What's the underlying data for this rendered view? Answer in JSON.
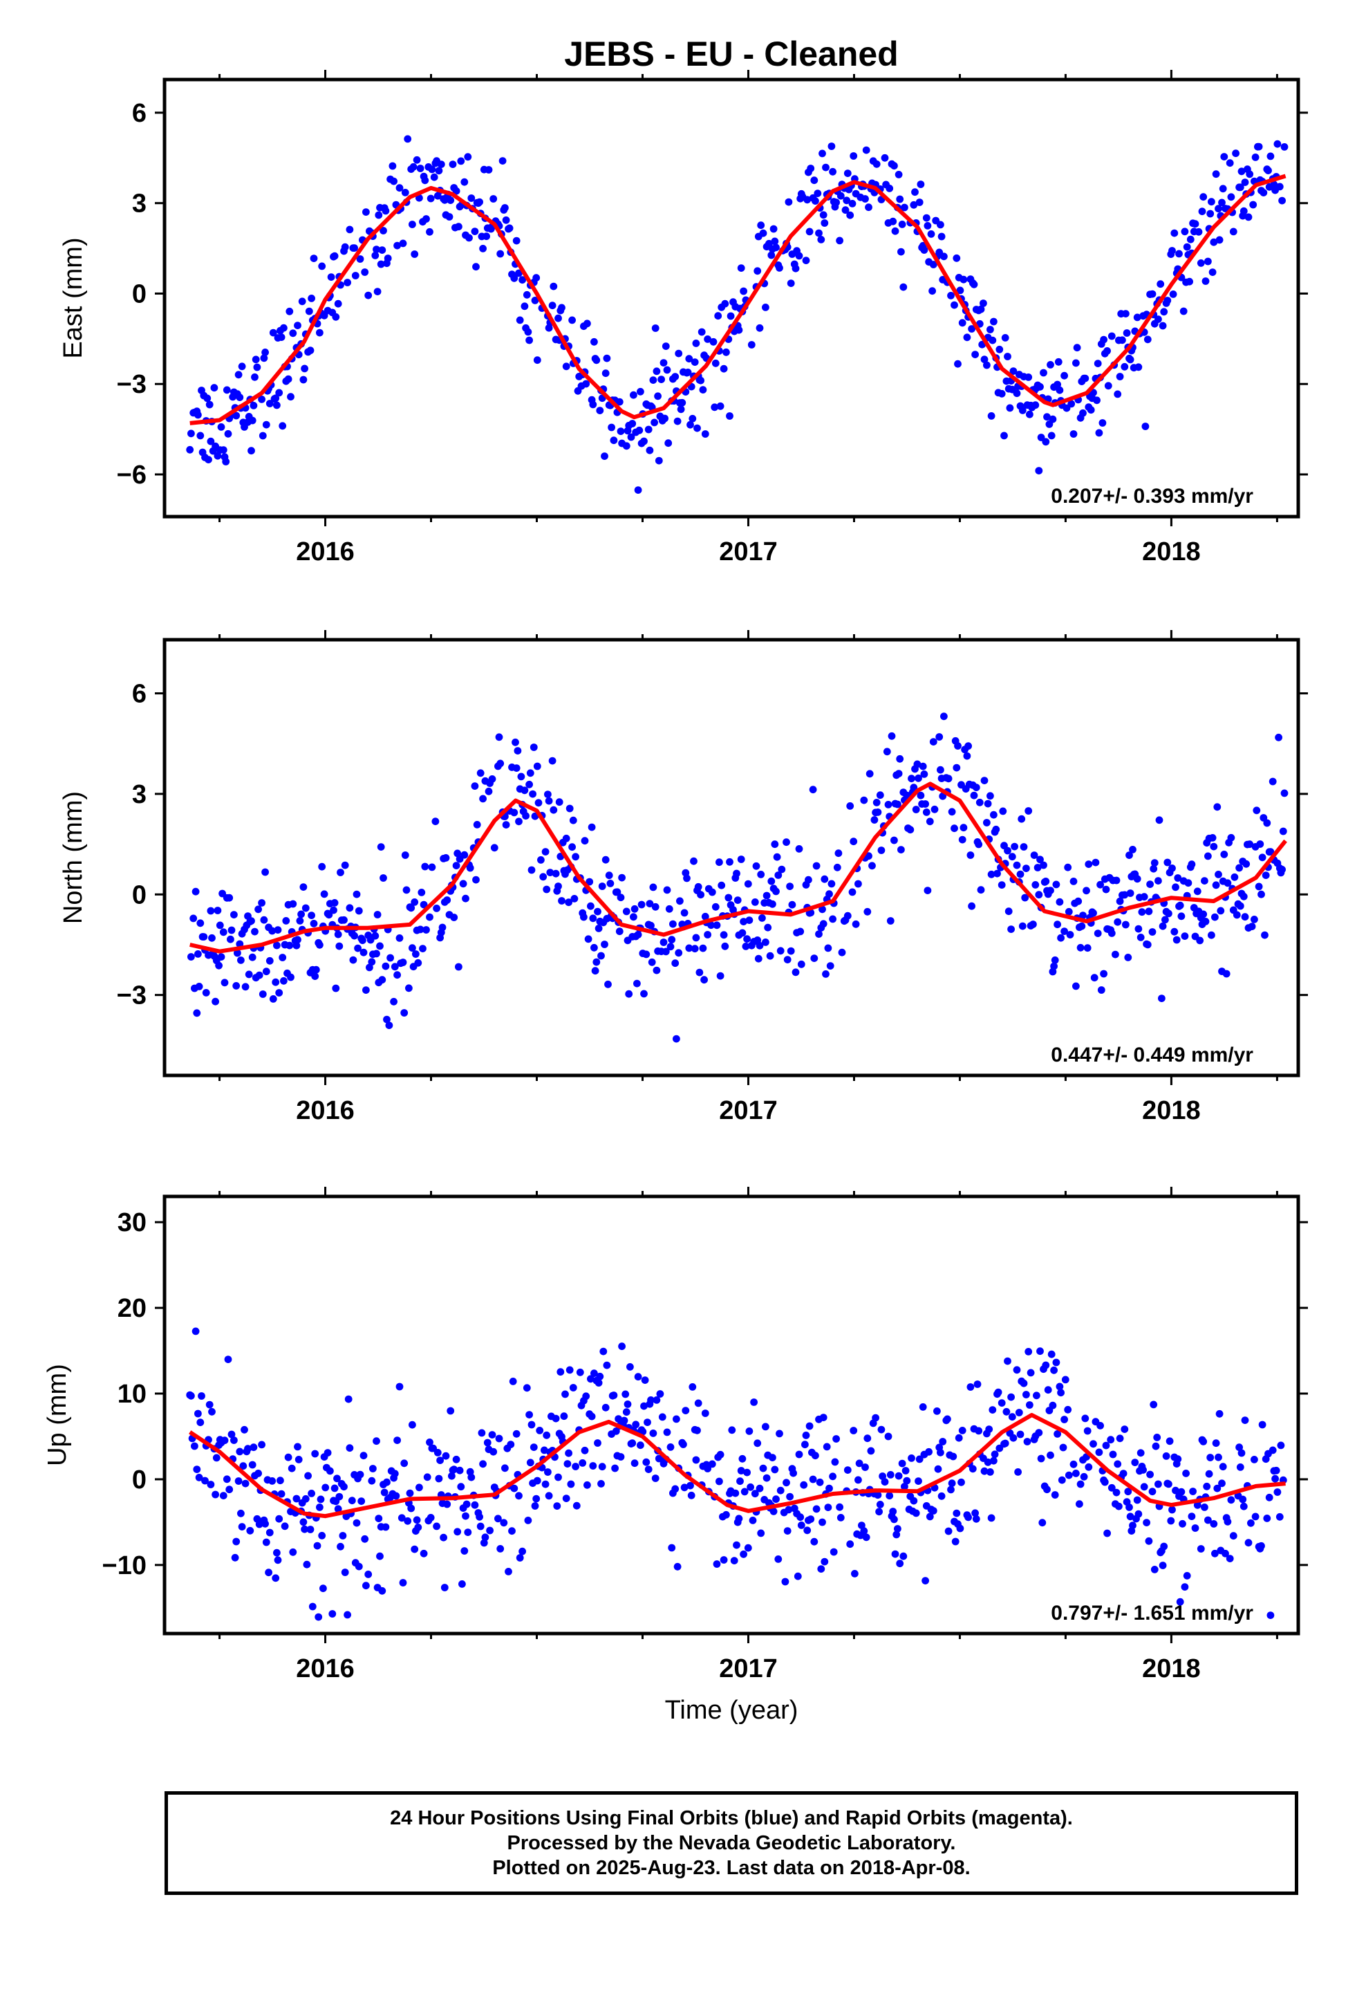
{
  "title": "JEBS  - EU - Cleaned",
  "xlabel": "Time (year)",
  "colors": {
    "points": "#0000ff",
    "fit": "#ff0000",
    "axes": "#000000"
  },
  "footer": {
    "line1": "24 Hour Positions Using Final Orbits (blue) and Rapid Orbits (magenta).",
    "line2": "Processed by the Nevada Geodetic Laboratory.",
    "line3": "Plotted on 2025-Aug-23. Last data on 2018-Apr-08."
  },
  "chart_data": [
    {
      "type": "scatter",
      "ylabel": "East (mm)",
      "xlim": [
        2015.62,
        2018.3
      ],
      "ylim": [
        -7.4,
        7.1
      ],
      "xticks": [
        2016,
        2017,
        2018
      ],
      "xtick_labels": [
        "2016",
        "2017",
        "2018"
      ],
      "yticks": [
        -6,
        -3,
        0,
        3,
        6
      ],
      "ytick_labels": [
        "−6",
        "−3",
        "0",
        "3",
        "6"
      ],
      "annotation": "0.207+/- 0.393 mm/yr",
      "noise": 0.85,
      "fit": {
        "x": [
          2015.68,
          2015.75,
          2015.85,
          2015.95,
          2016.0,
          2016.1,
          2016.2,
          2016.25,
          2016.3,
          2016.4,
          2016.5,
          2016.6,
          2016.7,
          2016.73,
          2016.8,
          2016.9,
          2017.0,
          2017.1,
          2017.2,
          2017.25,
          2017.3,
          2017.4,
          2017.5,
          2017.6,
          2017.7,
          2017.72,
          2017.8,
          2017.9,
          2018.0,
          2018.1,
          2018.2,
          2018.27
        ],
        "y": [
          -4.3,
          -4.2,
          -3.3,
          -1.6,
          -0.2,
          1.8,
          3.2,
          3.5,
          3.3,
          2.3,
          0.0,
          -2.5,
          -3.9,
          -4.1,
          -3.8,
          -2.4,
          -0.3,
          1.9,
          3.4,
          3.7,
          3.5,
          2.2,
          -0.2,
          -2.5,
          -3.6,
          -3.7,
          -3.3,
          -1.8,
          0.3,
          2.2,
          3.6,
          3.9
        ]
      }
    },
    {
      "type": "scatter",
      "ylabel": "North (mm)",
      "xlim": [
        2015.62,
        2018.3
      ],
      "ylim": [
        -5.4,
        7.6
      ],
      "xticks": [
        2016,
        2017,
        2018
      ],
      "xtick_labels": [
        "2016",
        "2017",
        "2018"
      ],
      "yticks": [
        -3,
        0,
        3,
        6
      ],
      "ytick_labels": [
        "−3",
        "0",
        "3",
        "6"
      ],
      "annotation": "0.447+/- 0.449 mm/yr",
      "noise": 1.0,
      "fit": {
        "x": [
          2015.68,
          2015.75,
          2015.85,
          2015.95,
          2016.0,
          2016.1,
          2016.2,
          2016.3,
          2016.4,
          2016.45,
          2016.5,
          2016.6,
          2016.7,
          2016.8,
          2016.9,
          2017.0,
          2017.1,
          2017.2,
          2017.3,
          2017.4,
          2017.43,
          2017.5,
          2017.6,
          2017.7,
          2017.8,
          2017.9,
          2018.0,
          2018.1,
          2018.2,
          2018.27
        ],
        "y": [
          -1.5,
          -1.7,
          -1.5,
          -1.1,
          -1.0,
          -1.0,
          -0.9,
          0.3,
          2.2,
          2.8,
          2.5,
          0.5,
          -0.9,
          -1.2,
          -0.8,
          -0.5,
          -0.6,
          -0.2,
          1.7,
          3.1,
          3.3,
          2.8,
          0.9,
          -0.5,
          -0.8,
          -0.4,
          -0.1,
          -0.2,
          0.5,
          1.6
        ]
      }
    },
    {
      "type": "scatter",
      "ylabel": "Up (mm)",
      "xlim": [
        2015.62,
        2018.3
      ],
      "ylim": [
        -18,
        33
      ],
      "xticks": [
        2016,
        2017,
        2018
      ],
      "xtick_labels": [
        "2016",
        "2017",
        "2018"
      ],
      "yticks": [
        -10,
        0,
        10,
        20,
        30
      ],
      "ytick_labels": [
        "−10",
        "0",
        "10",
        "20",
        "30"
      ],
      "annotation": "0.797+/- 1.651 mm/yr",
      "noise": 4.5,
      "fit": {
        "x": [
          2015.68,
          2015.75,
          2015.85,
          2015.95,
          2016.0,
          2016.1,
          2016.2,
          2016.3,
          2016.4,
          2016.5,
          2016.6,
          2016.67,
          2016.75,
          2016.85,
          2016.95,
          2017.0,
          2017.1,
          2017.2,
          2017.3,
          2017.4,
          2017.5,
          2017.6,
          2017.67,
          2017.75,
          2017.85,
          2017.95,
          2018.0,
          2018.1,
          2018.2,
          2018.27
        ],
        "y": [
          5.5,
          3.2,
          -1.2,
          -4.0,
          -4.3,
          -3.3,
          -2.3,
          -2.2,
          -1.8,
          1.5,
          5.5,
          6.7,
          5.0,
          0.5,
          -3.0,
          -3.7,
          -2.8,
          -1.7,
          -1.3,
          -1.4,
          1.0,
          5.5,
          7.5,
          5.5,
          1.0,
          -2.5,
          -3.0,
          -2.2,
          -0.8,
          -0.5
        ]
      }
    }
  ]
}
